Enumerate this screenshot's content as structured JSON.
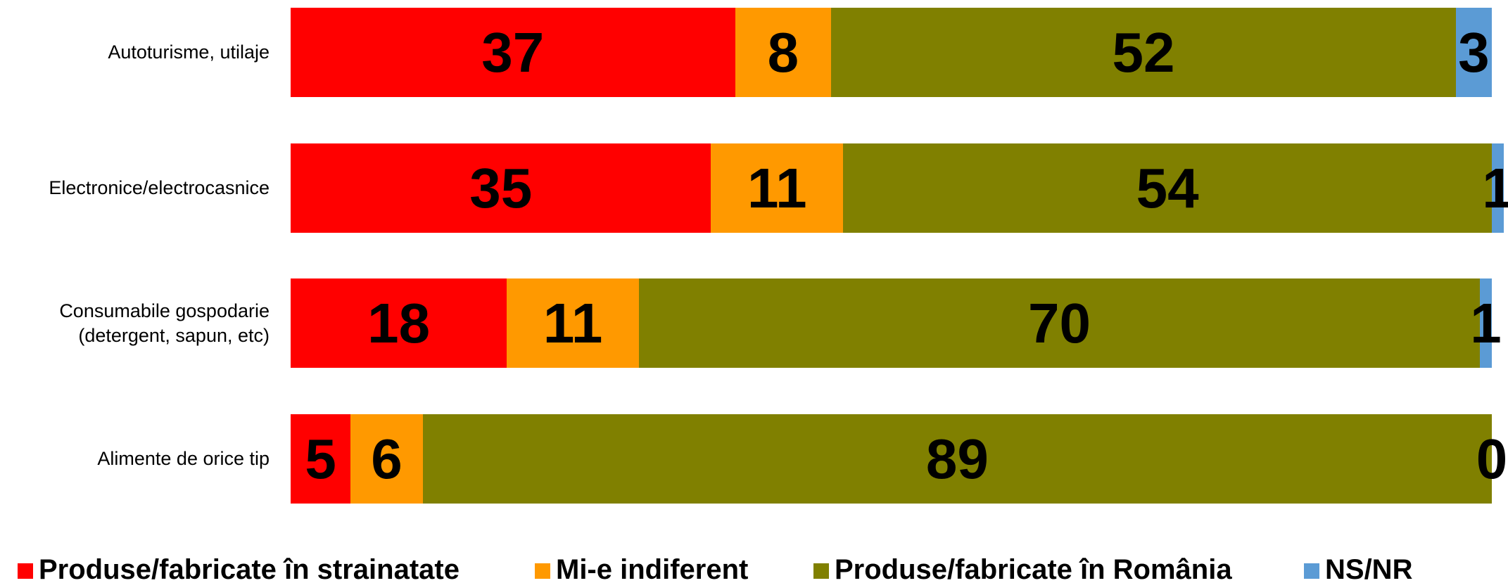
{
  "chart_data": {
    "type": "stacked_bar_horizontal",
    "categories": [
      "Autoturisme, utilaje",
      "Electronice/electrocasnice",
      "Consumabile gospodarie\n(detergent, sapun, etc)",
      "Alimente de orice tip"
    ],
    "series": [
      {
        "name": "Produse/fabricate în strainatate",
        "color": "#ff0000",
        "values": [
          37,
          35,
          18,
          5
        ]
      },
      {
        "name": "Mi-e indiferent",
        "color": "#ff9900",
        "values": [
          8,
          11,
          11,
          6
        ]
      },
      {
        "name": "Produse/fabricate în România",
        "color": "#808000",
        "values": [
          52,
          54,
          70,
          89
        ]
      },
      {
        "name": "NS/NR",
        "color": "#5b9bd5",
        "values": [
          3,
          1,
          1,
          0
        ]
      }
    ],
    "xlim": [
      0,
      100
    ],
    "legend": "bottom"
  }
}
